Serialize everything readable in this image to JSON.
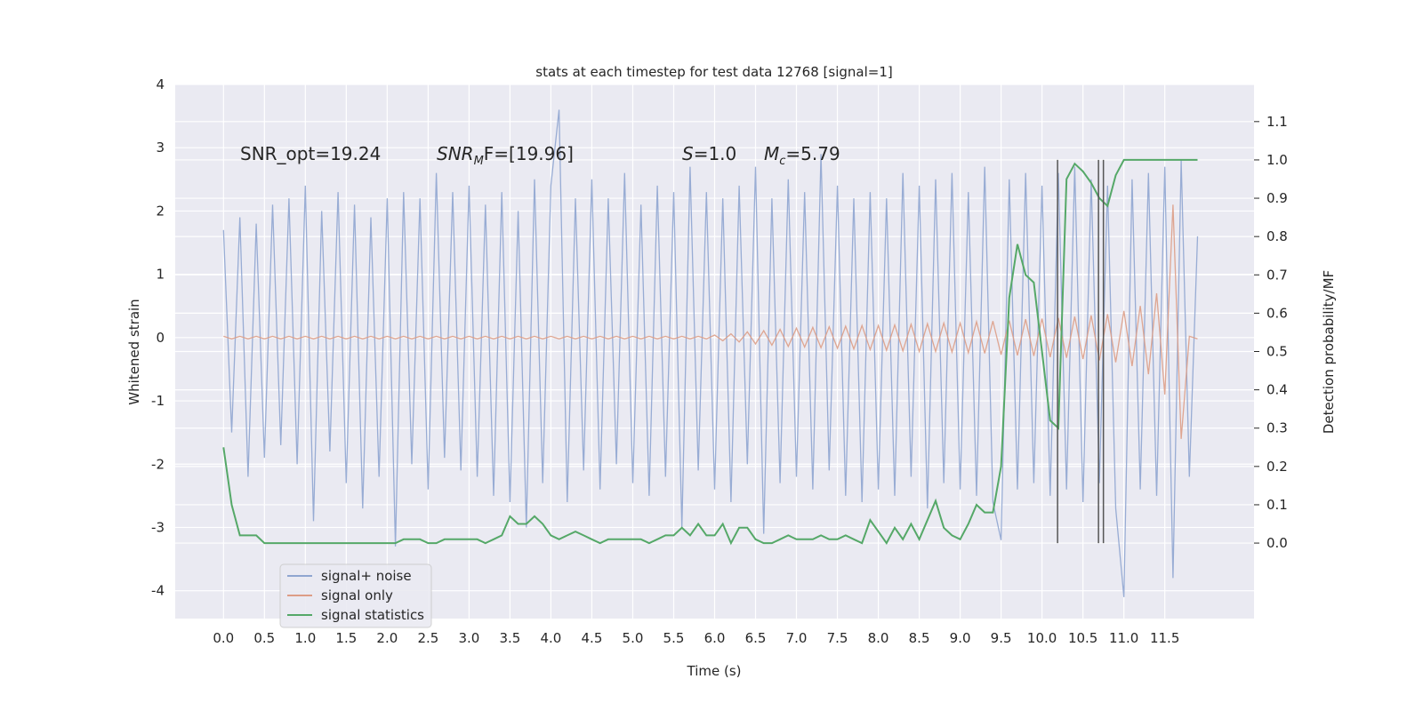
{
  "chart_data": {
    "type": "line",
    "title": "stats at each timestep for test data 12768 [signal=1]",
    "x_label": "Time (s)",
    "y_label": "Whitened strain",
    "y2_label": "Detection probability/MF",
    "annotations": [
      {
        "text": "SNR_opt=19.24"
      },
      {
        "symbol": "SNR",
        "subscript": "M",
        "text": "F=[19.96]"
      },
      {
        "symbol": "S",
        "text": "=1.0"
      },
      {
        "symbol": "M",
        "subscript": "c",
        "text": "=5.79"
      }
    ],
    "xlim": [
      -0.59,
      12.59
    ],
    "xticks": [
      {
        "value": 0,
        "label": "0.0"
      },
      0.5,
      {
        "value": 1,
        "label": "1.0"
      },
      1.5,
      {
        "value": 2,
        "label": "2.0"
      },
      2.5,
      {
        "value": 3,
        "label": "3.0"
      },
      3.5,
      {
        "value": 4,
        "label": "4.0"
      },
      4.5,
      {
        "value": 5,
        "label": "5.0"
      },
      5.5,
      {
        "value": 6,
        "label": "6.0"
      },
      6.5,
      {
        "value": 7,
        "label": "7.0"
      },
      7.5,
      {
        "value": 8,
        "label": "8.0"
      },
      8.5,
      {
        "value": 9,
        "label": "9.0"
      },
      9.5,
      {
        "value": 10,
        "label": "10.0"
      },
      10.5,
      {
        "value": 11,
        "label": "11.0"
      },
      11.5
    ],
    "ylim": [
      -4.44,
      4.0
    ],
    "yticks": [
      -4,
      -3,
      -2,
      -1,
      0,
      1,
      2,
      3,
      4
    ],
    "y2lim": [
      -0.197,
      1.197
    ],
    "y2ticks": [
      {
        "value": 0,
        "label": "0.0"
      },
      0.1,
      0.2,
      0.3,
      0.4,
      0.5,
      0.6,
      0.7,
      0.8,
      0.9,
      {
        "value": 1,
        "label": "1.0"
      },
      1.1
    ],
    "grid": true,
    "legend": "lower left",
    "x": [
      0,
      0.1,
      0.2,
      0.3,
      0.4,
      0.5,
      0.6,
      0.7,
      0.8,
      0.9,
      1,
      1.1,
      1.2,
      1.3,
      1.4,
      1.5,
      1.6,
      1.7,
      1.8,
      1.9,
      2,
      2.1,
      2.2,
      2.3,
      2.4,
      2.5,
      2.6,
      2.7,
      2.8,
      2.9,
      3,
      3.1,
      3.2,
      3.3,
      3.4,
      3.5,
      3.6,
      3.7,
      3.8,
      3.9,
      4,
      4.1,
      4.2,
      4.3,
      4.4,
      4.5,
      4.6,
      4.7,
      4.8,
      4.9,
      5,
      5.1,
      5.2,
      5.3,
      5.4,
      5.5,
      5.6,
      5.7,
      5.8,
      5.9,
      6,
      6.1,
      6.2,
      6.3,
      6.4,
      6.5,
      6.6,
      6.7,
      6.8,
      6.9,
      7,
      7.1,
      7.2,
      7.3,
      7.4,
      7.5,
      7.6,
      7.7,
      7.8,
      7.9,
      8,
      8.1,
      8.2,
      8.3,
      8.4,
      8.5,
      8.6,
      8.7,
      8.8,
      8.9,
      9,
      9.1,
      9.2,
      9.3,
      9.4,
      9.5,
      9.6,
      9.7,
      9.8,
      9.9,
      10,
      10.1,
      10.2,
      10.3,
      10.4,
      10.5,
      10.6,
      10.7,
      10.8,
      10.9,
      11,
      11.1,
      11.2,
      11.3,
      11.4,
      11.5,
      11.6,
      11.7,
      11.8,
      11.9
    ],
    "series": [
      {
        "name": "signal+ noise",
        "color": "#8fa5d0",
        "values": [
          1.7,
          -1.5,
          1.9,
          -2.2,
          1.8,
          -1.9,
          2.1,
          -1.7,
          2.2,
          -2.0,
          2.4,
          -2.9,
          2.0,
          -1.8,
          2.3,
          -2.3,
          2.1,
          -2.7,
          1.9,
          -2.2,
          2.2,
          -3.3,
          2.3,
          -2.0,
          2.2,
          -2.4,
          2.6,
          -1.9,
          2.3,
          -2.1,
          2.4,
          -2.2,
          2.1,
          -2.5,
          2.3,
          -2.6,
          2.0,
          -3.0,
          2.5,
          -2.3,
          2.4,
          3.6,
          -2.6,
          2.2,
          -2.1,
          2.5,
          -2.4,
          2.2,
          -2.0,
          2.6,
          -2.3,
          2.1,
          -2.5,
          2.4,
          -2.2,
          2.3,
          -3.0,
          2.7,
          -2.1,
          2.3,
          -2.4,
          2.2,
          -2.6,
          2.4,
          -2.0,
          2.7,
          -3.1,
          2.2,
          -2.3,
          2.5,
          -2.2,
          2.3,
          -2.4,
          2.9,
          -2.1,
          2.4,
          -2.5,
          2.2,
          -2.6,
          2.3,
          -2.4,
          2.2,
          -2.5,
          2.6,
          -2.2,
          2.4,
          -2.7,
          2.5,
          -2.3,
          2.6,
          -2.4,
          2.3,
          -2.5,
          2.7,
          -2.6,
          -3.2,
          2.5,
          -2.4,
          2.6,
          -2.3,
          2.4,
          -2.5,
          2.6,
          -2.4,
          2.7,
          -2.6,
          2.5,
          -2.3,
          2.4,
          -2.7,
          -4.1,
          2.5,
          -2.4,
          2.6,
          -2.5,
          2.7,
          -3.8,
          2.8,
          -2.2,
          1.6
        ]
      },
      {
        "name": "signal only",
        "color": "#dd9d86",
        "values": [
          0.02,
          -0.02,
          0.02,
          -0.02,
          0.02,
          -0.02,
          0.02,
          -0.02,
          0.02,
          -0.02,
          0.02,
          -0.02,
          0.02,
          -0.02,
          0.02,
          -0.02,
          0.02,
          -0.02,
          0.02,
          -0.02,
          0.02,
          -0.02,
          0.02,
          -0.02,
          0.02,
          -0.02,
          0.02,
          -0.02,
          0.02,
          -0.02,
          0.02,
          -0.02,
          0.02,
          -0.02,
          0.02,
          -0.02,
          0.02,
          -0.02,
          0.02,
          -0.02,
          0.02,
          -0.02,
          0.02,
          -0.02,
          0.02,
          -0.02,
          0.02,
          -0.02,
          0.02,
          -0.02,
          0.02,
          -0.02,
          0.02,
          -0.02,
          0.02,
          -0.02,
          0.02,
          -0.02,
          0.02,
          -0.02,
          0.04,
          -0.05,
          0.06,
          -0.07,
          0.09,
          -0.1,
          0.11,
          -0.12,
          0.13,
          -0.14,
          0.15,
          -0.15,
          0.16,
          -0.16,
          0.17,
          -0.17,
          0.18,
          -0.18,
          0.19,
          -0.19,
          0.19,
          -0.2,
          0.2,
          -0.21,
          0.21,
          -0.22,
          0.22,
          -0.22,
          0.23,
          -0.23,
          0.23,
          -0.24,
          0.25,
          -0.25,
          0.26,
          -0.27,
          0.27,
          -0.28,
          0.29,
          -0.29,
          0.3,
          -0.31,
          0.31,
          -0.32,
          0.33,
          -0.34,
          0.35,
          -0.36,
          0.37,
          -0.39,
          0.42,
          -0.45,
          0.5,
          -0.58,
          0.7,
          -0.9,
          2.1,
          -1.6,
          0.02,
          -0.02
        ]
      },
      {
        "name": "signal statistics",
        "color": "#55a868",
        "axis": "y2",
        "values": [
          0.25,
          0.1,
          0.02,
          0.02,
          0.02,
          0.0,
          0.0,
          0.0,
          0.0,
          0.0,
          0.0,
          0.0,
          0.0,
          0.0,
          0.0,
          0.0,
          0.0,
          0.0,
          0.0,
          0.0,
          0.0,
          0.0,
          0.01,
          0.01,
          0.01,
          0.0,
          0.0,
          0.01,
          0.01,
          0.01,
          0.01,
          0.01,
          0.0,
          0.01,
          0.02,
          0.07,
          0.05,
          0.05,
          0.07,
          0.05,
          0.02,
          0.01,
          0.02,
          0.03,
          0.02,
          0.01,
          0.0,
          0.01,
          0.01,
          0.01,
          0.01,
          0.01,
          0.0,
          0.01,
          0.02,
          0.02,
          0.04,
          0.02,
          0.05,
          0.02,
          0.02,
          0.05,
          0.0,
          0.04,
          0.04,
          0.01,
          0.0,
          0.0,
          0.01,
          0.02,
          0.01,
          0.01,
          0.01,
          0.02,
          0.01,
          0.01,
          0.02,
          0.01,
          0.0,
          0.06,
          0.03,
          0.0,
          0.04,
          0.01,
          0.05,
          0.01,
          0.06,
          0.11,
          0.04,
          0.02,
          0.01,
          0.05,
          0.1,
          0.08,
          0.08,
          0.2,
          0.64,
          0.78,
          0.7,
          0.68,
          0.5,
          0.32,
          0.3,
          0.95,
          0.99,
          0.97,
          0.94,
          0.9,
          0.88,
          0.96,
          1.0,
          1.0,
          1.0,
          1.0,
          1.0,
          1.0,
          1.0,
          1.0,
          1.0,
          1.0
        ]
      }
    ],
    "vlines": {
      "x": [
        10.19,
        10.69,
        10.75
      ],
      "ymin": 0,
      "ymax": 1,
      "axis": "y2",
      "color": "#555555"
    }
  }
}
